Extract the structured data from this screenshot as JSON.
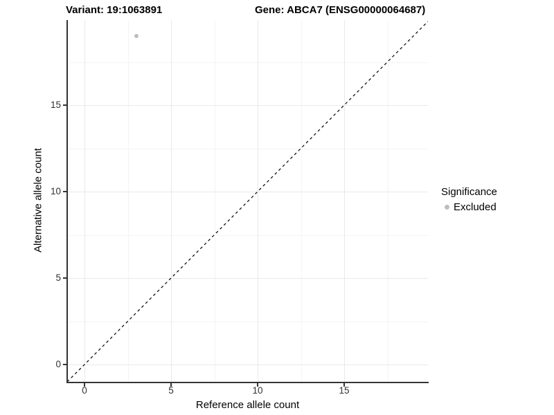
{
  "chart_data": {
    "type": "scatter",
    "titles": {
      "variant": "Variant: 19:1063891",
      "gene": "Gene: ABCA7 (ENSG00000064687)"
    },
    "xlabel": "Reference allele count",
    "ylabel": "Alternative allele count",
    "x_ticks": [
      "0",
      "5",
      "10",
      "15"
    ],
    "y_ticks": [
      "0",
      "5",
      "10",
      "15"
    ],
    "x_tick_values": [
      0,
      5,
      10,
      15
    ],
    "y_tick_values": [
      0,
      5,
      10,
      15
    ],
    "minor_tick_values": [
      2.5,
      7.5,
      12.5,
      17.5
    ],
    "xlim": [
      -1,
      19.8
    ],
    "ylim": [
      -1,
      19.9
    ],
    "grid": "major and minor light-gray gridlines on white background",
    "points": [
      {
        "x": 3,
        "y": 19,
        "series": "Excluded"
      }
    ],
    "point_color": "#bdbdbd",
    "reference_line": {
      "style": "dashed",
      "color": "#000000",
      "equation": "y = x"
    },
    "legend": {
      "position": "right",
      "title": "Significance",
      "items": [
        {
          "label": "Excluded",
          "marker": "circle",
          "color": "#bdbdbd"
        }
      ]
    },
    "colors": {
      "axis_line": "#333333",
      "tick_label": "#303030",
      "grid_major": "#e9e9e9",
      "grid_minor": "#f4f4f4"
    }
  }
}
